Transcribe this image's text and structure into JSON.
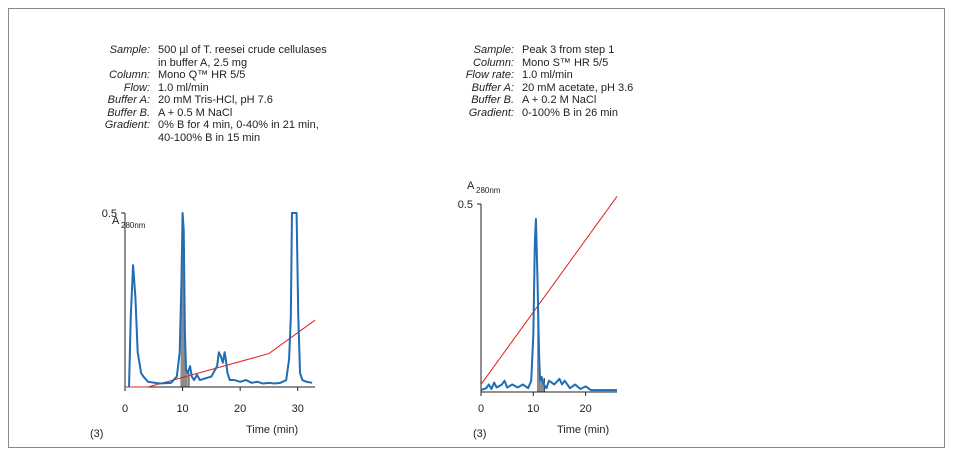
{
  "panels": {
    "left": {
      "params": [
        {
          "label": "Sample:",
          "lines": [
            "500 µl of T. reesei crude cellulases",
            "in buffer A, 2.5 mg"
          ]
        },
        {
          "label": "Column:",
          "lines": [
            "Mono Q™ HR 5/5"
          ]
        },
        {
          "label": "Flow:",
          "lines": [
            "1.0 ml/min"
          ]
        },
        {
          "label": "Buffer A:",
          "lines": [
            "20 mM Tris-HCl, pH 7.6"
          ]
        },
        {
          "label": "Buffer B.",
          "lines": [
            "A + 0.5 M NaCl"
          ]
        },
        {
          "label": "Gradient:",
          "lines": [
            "0% B for 4 min, 0-40% in 21 min,",
            "40-100% B in 15 min"
          ]
        }
      ],
      "ylabel_main": "A",
      "ylabel_sub": "280nm",
      "xlabel": "Time (min)",
      "footnote": "(3)"
    },
    "right": {
      "params": [
        {
          "label": "Sample:",
          "lines": [
            "Peak 3 from step 1"
          ]
        },
        {
          "label": "Column:",
          "lines": [
            "Mono S™ HR 5/5"
          ]
        },
        {
          "label": "Flow rate:",
          "lines": [
            "1.0 ml/min"
          ]
        },
        {
          "label": "Buffer A:",
          "lines": [
            "20 mM acetate, pH 3.6"
          ]
        },
        {
          "label": "Buffer B.",
          "lines": [
            "A + 0.2 M NaCl"
          ]
        },
        {
          "label": "Gradient:",
          "lines": [
            "0-100% B in 26 min"
          ]
        }
      ],
      "ylabel_main": "A",
      "ylabel_sub": "280nm",
      "xlabel": "Time (min)",
      "footnote": "(3)"
    }
  },
  "colors": {
    "absorbance": "#1f6db3",
    "gradient": "#e0201b",
    "fraction": "#8c8c8c",
    "axis": "#222222"
  },
  "chart_data": [
    {
      "type": "line",
      "xlim": [
        0,
        33
      ],
      "ylim": [
        0,
        0.5
      ],
      "xticks": [
        0,
        10,
        20,
        30
      ],
      "yticks": [
        0.5
      ],
      "series": [
        {
          "role": "absorbance",
          "x": [
            0.7,
            1.0,
            1.4,
            1.8,
            2.2,
            2.8,
            3.2,
            4,
            6,
            8,
            9,
            9.5,
            9.8,
            10,
            10.2,
            10.4,
            10.6,
            10.9,
            11.3,
            11.6,
            12,
            12.5,
            13,
            14,
            15,
            16,
            16.3,
            16.6,
            17,
            17.3,
            17.5,
            17.8,
            18.2,
            19,
            20,
            21,
            22,
            23,
            24,
            25,
            26,
            27,
            28,
            28.5,
            28.8,
            29,
            29.4,
            29.8,
            30.1,
            30.4,
            30.8,
            31.5,
            32.5
          ],
          "y": [
            0,
            0.2,
            0.35,
            0.26,
            0.1,
            0.04,
            0.03,
            0.015,
            0.01,
            0.012,
            0.03,
            0.1,
            0.3,
            0.5,
            0.45,
            0.16,
            0.05,
            0.04,
            0.06,
            0.03,
            0.02,
            0.035,
            0.02,
            0.025,
            0.03,
            0.06,
            0.1,
            0.09,
            0.07,
            0.1,
            0.08,
            0.04,
            0.02,
            0.02,
            0.015,
            0.02,
            0.012,
            0.015,
            0.01,
            0.012,
            0.01,
            0.012,
            0.02,
            0.08,
            0.2,
            0.5,
            0.5,
            0.5,
            0.2,
            0.04,
            0.02,
            0.015,
            0.012
          ]
        },
        {
          "role": "gradient",
          "x": [
            0,
            4,
            25,
            33
          ],
          "y": [
            0,
            0,
            0.096,
            0.192
          ]
        }
      ],
      "shaded_x": [
        9.6,
        10.9
      ],
      "stop_x": 11.1
    },
    {
      "type": "line",
      "xlim": [
        0,
        26
      ],
      "ylim": [
        0,
        0.5
      ],
      "xticks": [
        0,
        10,
        20
      ],
      "yticks": [
        0.5
      ],
      "series": [
        {
          "role": "absorbance",
          "x": [
            0,
            1,
            1.5,
            2,
            2.5,
            3,
            4,
            4.5,
            5,
            6,
            7,
            8,
            9,
            9.6,
            10,
            10.3,
            10.5,
            10.8,
            11.1,
            11.3,
            11.6,
            12,
            12.5,
            13,
            14,
            15,
            15.5,
            16,
            17,
            18,
            19,
            20,
            21,
            22,
            24,
            26
          ],
          "y": [
            0.005,
            0.01,
            0.02,
            0.008,
            0.025,
            0.012,
            0.02,
            0.03,
            0.012,
            0.02,
            0.012,
            0.02,
            0.01,
            0.03,
            0.15,
            0.4,
            0.46,
            0.3,
            0.1,
            0.03,
            0.04,
            0.02,
            0.01,
            0.03,
            0.02,
            0.035,
            0.02,
            0.03,
            0.01,
            0.02,
            0.008,
            0.015,
            0.005,
            0.005,
            0.005,
            0.005
          ]
        },
        {
          "role": "gradient",
          "x": [
            0,
            26
          ],
          "y": [
            0.02,
            0.52
          ]
        }
      ],
      "shaded_x": [
        10.7,
        12.0
      ],
      "stop_x": 12.1
    }
  ]
}
